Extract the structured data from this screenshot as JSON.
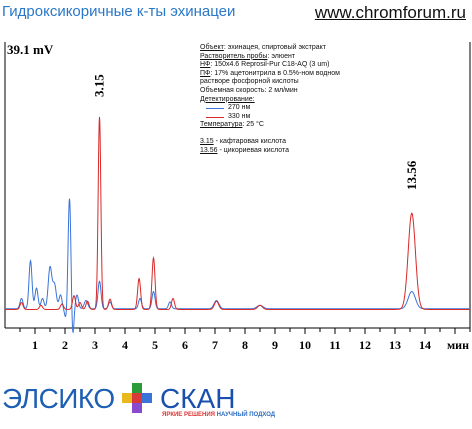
{
  "header": {
    "title": "Гидроксикоричные к-ты эхинацеи",
    "site": "www.chromforum.ru"
  },
  "info": {
    "object_label": "Объект",
    "object_value": ": эхинацея, спиртовый экстракт",
    "solvent_label": "Растворитель пробы",
    "solvent_value": ": элюент",
    "sp_label": "НФ",
    "sp_value": ": 150x4.6 Reprosil-Pur C18-AQ  (3 um)",
    "mp_label": "ПФ",
    "mp_value": ": 17% ацетонитрила в 0.5%-ном водном",
    "mp_value2": "растворе фосфорной кислоты",
    "flow": "Объемная скорость: 2 мл/мин",
    "det_label": "Детектирование:",
    "temp_label": "Температура",
    "temp_value": ": 25 °C",
    "peak1_rt": "3.15",
    "peak1_name": " - кафтаровая кислота",
    "peak2_rt": "13.56",
    "peak2_name": " - цикориевая кислота"
  },
  "logo": {
    "left": "ЭЛСИКО",
    "right": "СКАН",
    "slogan_a": "ЯРКИЕ РЕШЕНИЯ",
    "slogan_b": "НАУЧНЫЙ ПОДХОД"
  },
  "chart_data": {
    "type": "line",
    "xlabel": "мин",
    "ylabel": "",
    "y_max_label": "39.1 mV",
    "xlim": [
      0,
      15.5
    ],
    "ylim": [
      -2.5,
      39.1
    ],
    "x_ticks": [
      1,
      2,
      3,
      4,
      5,
      6,
      7,
      8,
      9,
      10,
      11,
      12,
      13,
      14
    ],
    "annotations": [
      {
        "text": "3.15",
        "x": 3.15
      },
      {
        "text": "13.56",
        "x": 13.56
      }
    ],
    "series": [
      {
        "name": "270 нм",
        "color": "#3a74d8",
        "baseline": 0.3,
        "peaks": [
          [
            0.55,
            0.05,
            1.5
          ],
          [
            0.85,
            0.05,
            7.0
          ],
          [
            1.05,
            0.05,
            3.0
          ],
          [
            1.25,
            0.05,
            1.5
          ],
          [
            1.5,
            0.06,
            6.0
          ],
          [
            1.65,
            0.06,
            3.5
          ],
          [
            1.85,
            0.05,
            2.0
          ],
          [
            2.05,
            0.05,
            -2.0
          ],
          [
            2.15,
            0.05,
            16.5
          ],
          [
            2.25,
            0.04,
            -5.0
          ],
          [
            2.4,
            0.05,
            2.0
          ],
          [
            2.7,
            0.06,
            1.2
          ],
          [
            3.15,
            0.05,
            4.0
          ],
          [
            3.5,
            0.05,
            1.0
          ],
          [
            4.5,
            0.05,
            1.5
          ],
          [
            4.95,
            0.05,
            2.5
          ],
          [
            5.5,
            0.05,
            1.0
          ],
          [
            7.05,
            0.08,
            1.2
          ],
          [
            8.5,
            0.1,
            0.5
          ],
          [
            13.56,
            0.12,
            2.5
          ]
        ]
      },
      {
        "name": "330 нм",
        "color": "#d82828",
        "baseline": 0.2,
        "peaks": [
          [
            0.55,
            0.05,
            1.0
          ],
          [
            1.2,
            0.05,
            0.6
          ],
          [
            1.9,
            0.05,
            0.8
          ],
          [
            2.3,
            0.05,
            2.0
          ],
          [
            2.5,
            0.05,
            1.0
          ],
          [
            2.75,
            0.05,
            1.2
          ],
          [
            3.15,
            0.045,
            28.0
          ],
          [
            3.5,
            0.05,
            1.5
          ],
          [
            4.47,
            0.05,
            4.5
          ],
          [
            4.95,
            0.05,
            7.5
          ],
          [
            5.6,
            0.05,
            1.6
          ],
          [
            7.05,
            0.07,
            1.2
          ],
          [
            8.5,
            0.08,
            0.6
          ],
          [
            13.56,
            0.12,
            14.0
          ]
        ]
      }
    ]
  }
}
